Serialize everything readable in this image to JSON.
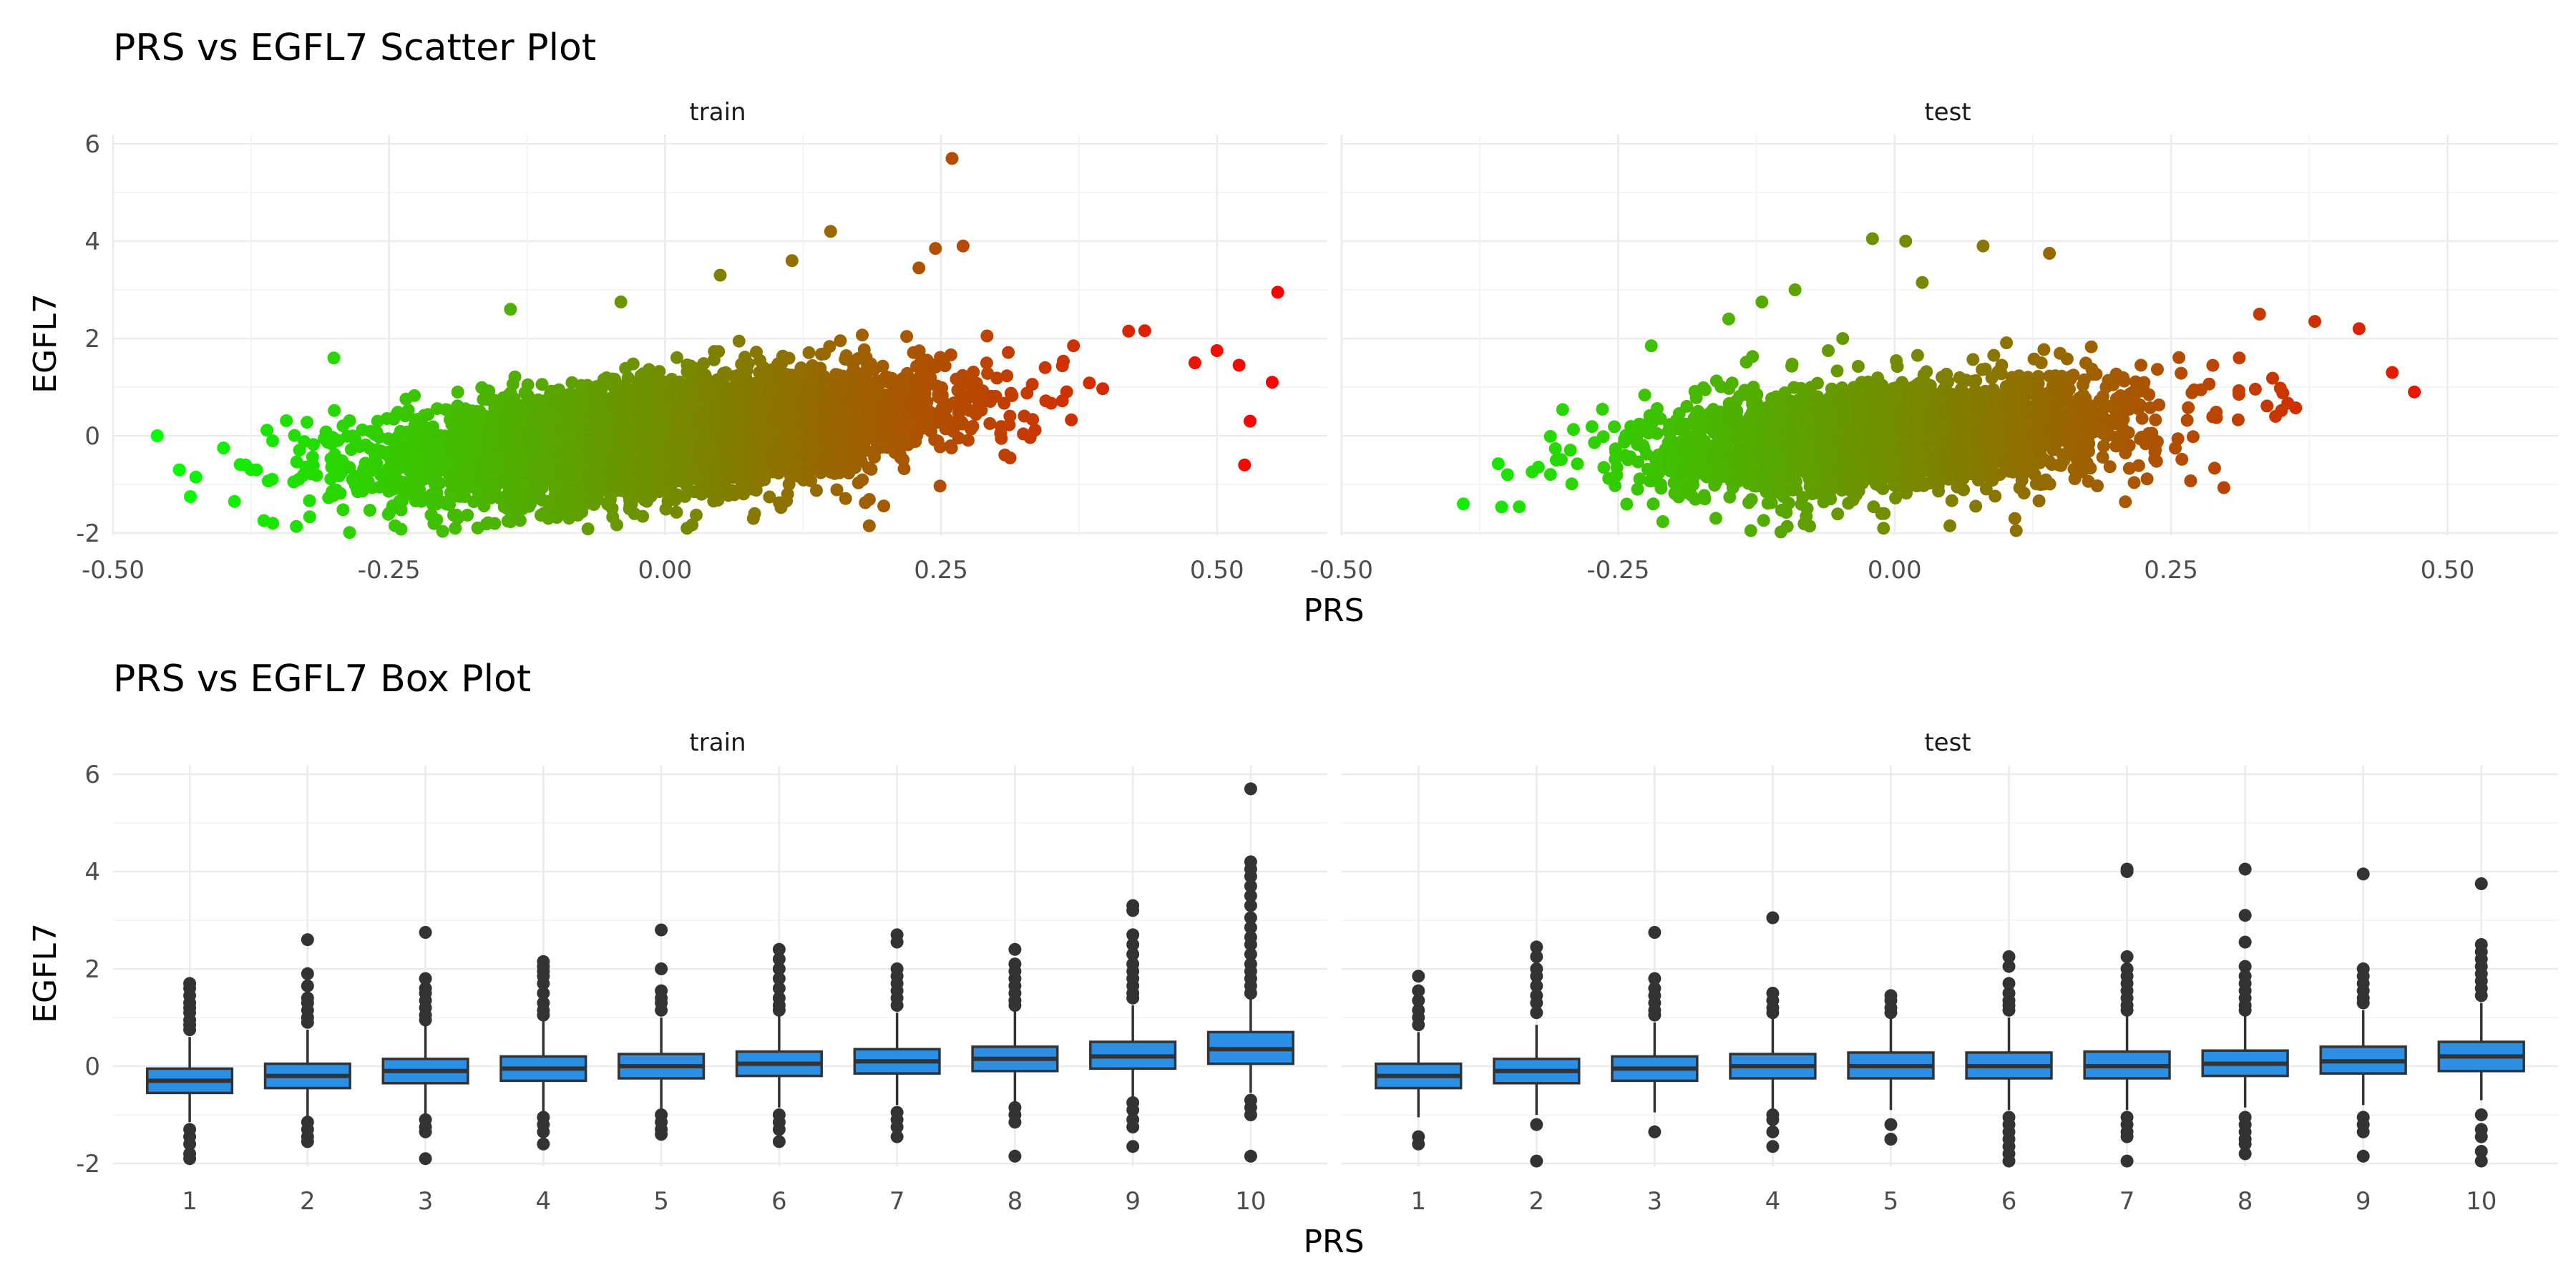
{
  "chart_data": [
    {
      "type": "scatter",
      "title": "PRS vs EGFL7 Scatter Plot",
      "xlabel": "PRS",
      "ylabel": "EGFL7",
      "xlim": [
        -0.5,
        0.6
      ],
      "ylim": [
        -2.1,
        6.2
      ],
      "x_ticks": [
        "-0.50",
        "-0.25",
        "0.00",
        "0.25",
        "0.50"
      ],
      "y_ticks": [
        "-2",
        "0",
        "2",
        "4",
        "6"
      ],
      "color_scale": {
        "low": "#00ff00",
        "high": "#ff0000",
        "mapped_to": "PRS"
      },
      "grid": true,
      "facets": [
        {
          "name": "train",
          "trend": {
            "slope": 2.6,
            "intercept": 0.0
          },
          "points": [
            {
              "x": -0.46,
              "y": 0.0
            },
            {
              "x": -0.44,
              "y": -0.7
            },
            {
              "x": -0.43,
              "y": -1.25
            },
            {
              "x": -0.425,
              "y": -0.85
            },
            {
              "x": -0.4,
              "y": -0.25
            },
            {
              "x": -0.39,
              "y": -1.35
            },
            {
              "x": -0.38,
              "y": -0.6
            },
            {
              "x": -0.3,
              "y": 1.6
            },
            {
              "x": -0.19,
              "y": -1.9
            },
            {
              "x": -0.14,
              "y": 2.6
            },
            {
              "x": -0.04,
              "y": 2.75
            },
            {
              "x": 0.02,
              "y": -1.9
            },
            {
              "x": 0.05,
              "y": 3.3
            },
            {
              "x": 0.08,
              "y": -1.7
            },
            {
              "x": 0.115,
              "y": 3.6
            },
            {
              "x": 0.15,
              "y": 4.2
            },
            {
              "x": 0.185,
              "y": -1.85
            },
            {
              "x": 0.23,
              "y": 3.45
            },
            {
              "x": 0.245,
              "y": 3.85
            },
            {
              "x": 0.26,
              "y": 5.7
            },
            {
              "x": 0.27,
              "y": 3.9
            },
            {
              "x": 0.37,
              "y": 1.85
            },
            {
              "x": 0.42,
              "y": 2.15
            },
            {
              "x": 0.48,
              "y": 1.5
            },
            {
              "x": 0.5,
              "y": 1.75
            },
            {
              "x": 0.52,
              "y": 1.45
            },
            {
              "x": 0.53,
              "y": 0.3
            },
            {
              "x": 0.525,
              "y": -0.6
            },
            {
              "x": 0.55,
              "y": 1.1
            },
            {
              "x": 0.555,
              "y": 2.95
            }
          ]
        },
        {
          "name": "test",
          "trend": {
            "slope": 2.0,
            "intercept": 0.0
          },
          "points": [
            {
              "x": -0.39,
              "y": -1.4
            },
            {
              "x": -0.35,
              "y": -0.8
            },
            {
              "x": -0.22,
              "y": 1.85
            },
            {
              "x": -0.15,
              "y": 2.4
            },
            {
              "x": -0.13,
              "y": -1.95
            },
            {
              "x": -0.12,
              "y": 2.75
            },
            {
              "x": -0.09,
              "y": 3.0
            },
            {
              "x": -0.06,
              "y": 1.75
            },
            {
              "x": -0.02,
              "y": 4.05
            },
            {
              "x": -0.01,
              "y": -1.9
            },
            {
              "x": 0.01,
              "y": 4.0
            },
            {
              "x": 0.025,
              "y": 3.15
            },
            {
              "x": 0.05,
              "y": -1.85
            },
            {
              "x": 0.08,
              "y": 3.9
            },
            {
              "x": 0.11,
              "y": -1.95
            },
            {
              "x": 0.14,
              "y": 3.75
            },
            {
              "x": 0.33,
              "y": 2.5
            },
            {
              "x": 0.38,
              "y": 2.35
            },
            {
              "x": 0.42,
              "y": 2.2
            },
            {
              "x": 0.45,
              "y": 1.3
            },
            {
              "x": 0.47,
              "y": 0.9
            }
          ]
        }
      ]
    },
    {
      "type": "box",
      "title": "PRS vs EGFL7 Box Plot",
      "xlabel": "PRS",
      "ylabel": "EGFL7",
      "ylim": [
        -2.1,
        6.2
      ],
      "y_ticks": [
        "-2",
        "0",
        "2",
        "4",
        "6"
      ],
      "categories": [
        "1",
        "2",
        "3",
        "4",
        "5",
        "6",
        "7",
        "8",
        "9",
        "10"
      ],
      "box_fill": "#2b8fe6",
      "grid": true,
      "facets": [
        {
          "name": "train",
          "boxes": [
            {
              "q1": -0.55,
              "median": -0.3,
              "q3": -0.05,
              "low": -1.15,
              "high": 0.6,
              "out": [
                1.7,
                1.6,
                1.45,
                1.3,
                1.2,
                1.1,
                0.95,
                0.85,
                0.75,
                -1.3,
                -1.45,
                -1.6,
                -1.8,
                -1.9
              ]
            },
            {
              "q1": -0.45,
              "median": -0.2,
              "q3": 0.05,
              "low": -1.05,
              "high": 0.75,
              "out": [
                2.6,
                1.9,
                1.65,
                1.4,
                1.3,
                1.15,
                1.0,
                0.9,
                -1.15,
                -1.3,
                -1.45,
                -1.55
              ]
            },
            {
              "q1": -0.35,
              "median": -0.1,
              "q3": 0.15,
              "low": -1.0,
              "high": 0.85,
              "out": [
                2.75,
                1.8,
                1.6,
                1.5,
                1.35,
                1.2,
                1.05,
                0.95,
                -1.1,
                -1.25,
                -1.35,
                -1.9
              ]
            },
            {
              "q1": -0.3,
              "median": -0.05,
              "q3": 0.2,
              "low": -0.95,
              "high": 0.95,
              "out": [
                2.15,
                2.05,
                1.95,
                1.85,
                1.7,
                1.5,
                1.3,
                1.15,
                1.05,
                -1.05,
                -1.2,
                -1.35,
                -1.6
              ]
            },
            {
              "q1": -0.25,
              "median": 0.0,
              "q3": 0.25,
              "low": -0.9,
              "high": 1.0,
              "out": [
                2.8,
                2.0,
                1.55,
                1.4,
                1.3,
                1.15,
                -1.0,
                -1.15,
                -1.3,
                -1.4
              ]
            },
            {
              "q1": -0.2,
              "median": 0.05,
              "q3": 0.3,
              "low": -0.85,
              "high": 1.05,
              "out": [
                2.4,
                2.2,
                2.0,
                1.8,
                1.6,
                1.4,
                1.25,
                1.15,
                -1.0,
                -1.15,
                -1.3,
                -1.55
              ]
            },
            {
              "q1": -0.15,
              "median": 0.1,
              "q3": 0.35,
              "low": -0.8,
              "high": 1.1,
              "out": [
                2.7,
                2.55,
                2.0,
                1.85,
                1.7,
                1.55,
                1.4,
                1.25,
                -0.95,
                -1.1,
                -1.25,
                -1.45
              ]
            },
            {
              "q1": -0.1,
              "median": 0.15,
              "q3": 0.4,
              "low": -0.75,
              "high": 1.15,
              "out": [
                2.4,
                2.1,
                1.95,
                1.8,
                1.65,
                1.5,
                1.35,
                1.25,
                -0.85,
                -1.0,
                -1.15,
                -1.85
              ]
            },
            {
              "q1": -0.05,
              "median": 0.2,
              "q3": 0.5,
              "low": -0.65,
              "high": 1.25,
              "out": [
                3.3,
                3.2,
                2.7,
                2.5,
                2.3,
                2.1,
                1.95,
                1.8,
                1.65,
                1.5,
                1.4,
                -0.75,
                -0.9,
                -1.1,
                -1.25,
                -1.65
              ]
            },
            {
              "q1": 0.05,
              "median": 0.35,
              "q3": 0.7,
              "low": -0.55,
              "high": 1.4,
              "out": [
                5.7,
                4.2,
                4.05,
                3.9,
                3.7,
                3.5,
                3.3,
                3.05,
                2.85,
                2.65,
                2.5,
                2.3,
                2.1,
                1.95,
                1.8,
                1.65,
                1.5,
                -0.7,
                -0.85,
                -1.0,
                -1.85
              ]
            }
          ]
        },
        {
          "name": "test",
          "boxes": [
            {
              "q1": -0.45,
              "median": -0.2,
              "q3": 0.05,
              "low": -1.05,
              "high": 0.7,
              "out": [
                1.85,
                1.55,
                1.35,
                1.15,
                1.0,
                0.85,
                -1.45,
                -1.6
              ]
            },
            {
              "q1": -0.35,
              "median": -0.1,
              "q3": 0.15,
              "low": -1.0,
              "high": 0.85,
              "out": [
                2.45,
                2.25,
                2.0,
                1.85,
                1.65,
                1.45,
                1.3,
                1.1,
                -1.2,
                -1.95
              ]
            },
            {
              "q1": -0.3,
              "median": -0.05,
              "q3": 0.2,
              "low": -0.95,
              "high": 0.9,
              "out": [
                2.75,
                1.8,
                1.6,
                1.45,
                1.3,
                1.15,
                1.05,
                -1.35
              ]
            },
            {
              "q1": -0.25,
              "median": 0.0,
              "q3": 0.25,
              "low": -0.9,
              "high": 1.0,
              "out": [
                3.05,
                1.5,
                1.35,
                1.2,
                1.1,
                -1.0,
                -1.1,
                -1.35,
                -1.65
              ]
            },
            {
              "q1": -0.25,
              "median": 0.0,
              "q3": 0.28,
              "low": -0.9,
              "high": 1.0,
              "out": [
                1.45,
                1.35,
                1.2,
                1.1,
                -1.2,
                -1.5
              ]
            },
            {
              "q1": -0.25,
              "median": 0.0,
              "q3": 0.28,
              "low": -0.9,
              "high": 1.0,
              "out": [
                2.25,
                2.05,
                1.7,
                1.5,
                1.35,
                1.25,
                1.15,
                -1.05,
                -1.2,
                -1.35,
                -1.5,
                -1.65,
                -1.8,
                -1.95
              ]
            },
            {
              "q1": -0.25,
              "median": 0.0,
              "q3": 0.3,
              "low": -0.9,
              "high": 1.05,
              "out": [
                4.05,
                4.0,
                2.25,
                2.0,
                1.85,
                1.7,
                1.55,
                1.4,
                1.25,
                1.15,
                -1.05,
                -1.2,
                -1.35,
                -1.45,
                -1.95
              ]
            },
            {
              "q1": -0.2,
              "median": 0.05,
              "q3": 0.32,
              "low": -0.85,
              "high": 1.05,
              "out": [
                4.05,
                3.1,
                2.55,
                2.05,
                1.85,
                1.7,
                1.55,
                1.4,
                1.25,
                1.15,
                -1.05,
                -1.2,
                -1.35,
                -1.5,
                -1.6,
                -1.8
              ]
            },
            {
              "q1": -0.15,
              "median": 0.1,
              "q3": 0.4,
              "low": -0.8,
              "high": 1.15,
              "out": [
                3.95,
                2.0,
                1.85,
                1.7,
                1.55,
                1.4,
                1.3,
                -1.05,
                -1.2,
                -1.35,
                -1.85
              ]
            },
            {
              "q1": -0.1,
              "median": 0.2,
              "q3": 0.5,
              "low": -0.7,
              "high": 1.3,
              "out": [
                3.75,
                2.5,
                2.35,
                2.2,
                2.05,
                1.9,
                1.75,
                1.6,
                1.45,
                -1.0,
                -1.3,
                -1.45,
                -1.75,
                -1.95
              ]
            }
          ]
        }
      ]
    }
  ]
}
